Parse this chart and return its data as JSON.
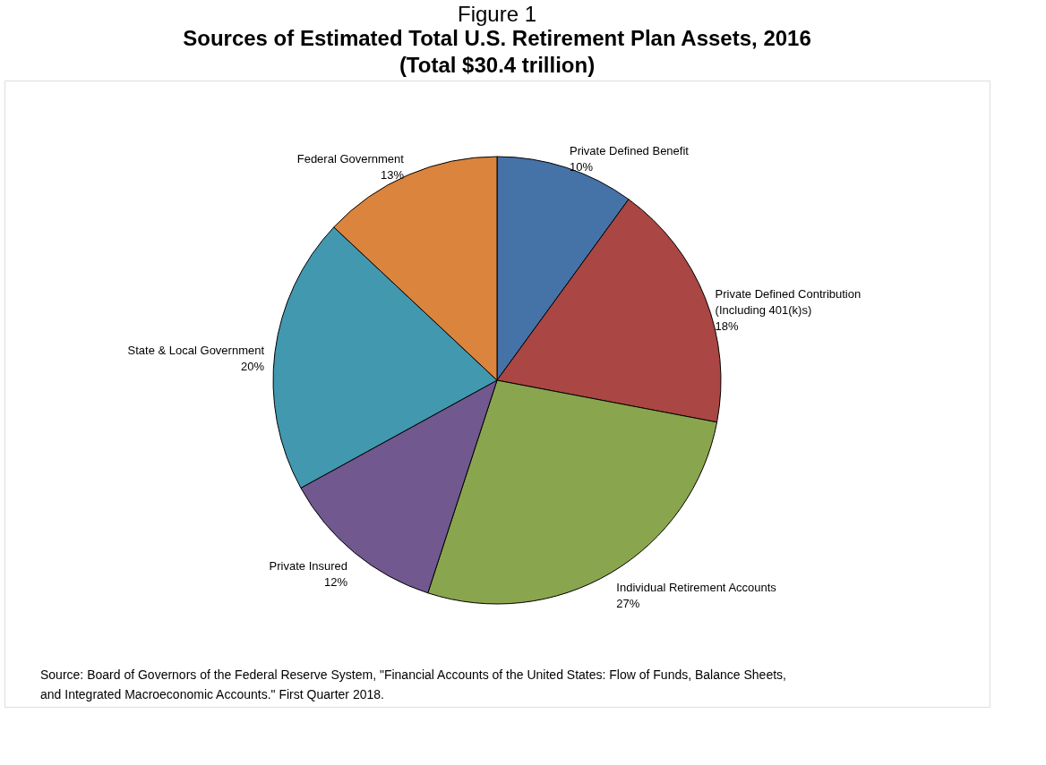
{
  "chart_data": {
    "type": "pie",
    "title": "Figure 1",
    "subtitle": "Sources of Estimated Total U.S. Retirement Plan Assets, 2016\n(Total $30.4 trillion)",
    "categories": [
      "Private Defined Benefit",
      "Private Defined Contribution\n(Including 401(k)s)",
      "Individual Retirement Accounts",
      "Private Insured",
      "State & Local Government",
      "Federal Government"
    ],
    "values": [
      10,
      18,
      27,
      12,
      20,
      13
    ],
    "value_labels": [
      "10%",
      "18%",
      "27%",
      "12%",
      "20%",
      "13%"
    ],
    "colors": [
      "#4572a7",
      "#aa4643",
      "#89a54e",
      "#71588f",
      "#4198af",
      "#db843d"
    ],
    "legend": false,
    "annotations": [
      "Source: Board of Governors of the Federal Reserve System, \"Financial Accounts of the United States: Flow of Funds, Balance Sheets,\nand Integrated Macroeconomic Accounts.\" First Quarter 2018."
    ]
  }
}
